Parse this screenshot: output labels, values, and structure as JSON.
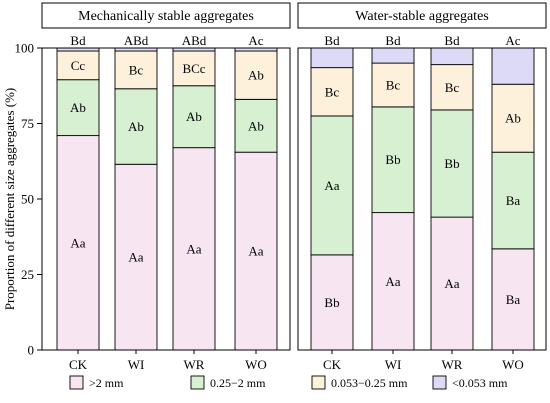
{
  "chart_data": {
    "type": "bar",
    "stacked": true,
    "ylabel": "Proportion of different size aggregates (%)",
    "ylim": [
      0,
      100
    ],
    "yticks": [
      0,
      25,
      50,
      75,
      100
    ],
    "categories": [
      "CK",
      "WI",
      "WR",
      "WO"
    ],
    "legend": {
      "placement": "bottom",
      "entries": [
        ">2 mm",
        "0.25−2 mm",
        "0.053−0.25 mm",
        "<0.053 mm"
      ]
    },
    "colors": [
      "#f7e6f1",
      "#d7f0d2",
      "#fdf1dc",
      "#dcdaf6"
    ],
    "panels": [
      {
        "title": "Mechanically stable aggregates",
        "series": [
          {
            "name": ">2 mm",
            "values": [
              71,
              61.5,
              67,
              65.5
            ]
          },
          {
            "name": "0.25−2 mm",
            "values": [
              18.5,
              25,
              20.5,
              17.5
            ]
          },
          {
            "name": "0.053−0.25 mm",
            "values": [
              9.5,
              12.5,
              11.5,
              16
            ]
          },
          {
            "name": "<0.053 mm",
            "values": [
              1,
              1,
              1,
              1
            ]
          }
        ],
        "labels": [
          [
            "Aa",
            "Aa",
            "Aa",
            "Aa"
          ],
          [
            "Ab",
            "Ab",
            "Ab",
            "Ab"
          ],
          [
            "Cc",
            "Bc",
            "BCc",
            "Ab"
          ],
          [
            "Bd",
            "ABd",
            "ABd",
            "Ac"
          ]
        ]
      },
      {
        "title": "Water-stable aggregates",
        "series": [
          {
            "name": ">2 mm",
            "values": [
              31.5,
              45.5,
              44,
              33.5
            ]
          },
          {
            "name": "0.25−2 mm",
            "values": [
              46,
              35,
              35.5,
              32
            ]
          },
          {
            "name": "0.053−0.25 mm",
            "values": [
              16,
              14.5,
              15,
              22.5
            ]
          },
          {
            "name": "<0.053 mm",
            "values": [
              6.5,
              5,
              5.5,
              12
            ]
          }
        ],
        "labels": [
          [
            "Bb",
            "Aa",
            "Aa",
            "Ba"
          ],
          [
            "Aa",
            "Bb",
            "Bb",
            "Ba"
          ],
          [
            "Bc",
            "Bc",
            "Bc",
            "Ab"
          ],
          [
            "Bd",
            "Bd",
            "Bd",
            "Ac"
          ]
        ]
      }
    ]
  }
}
